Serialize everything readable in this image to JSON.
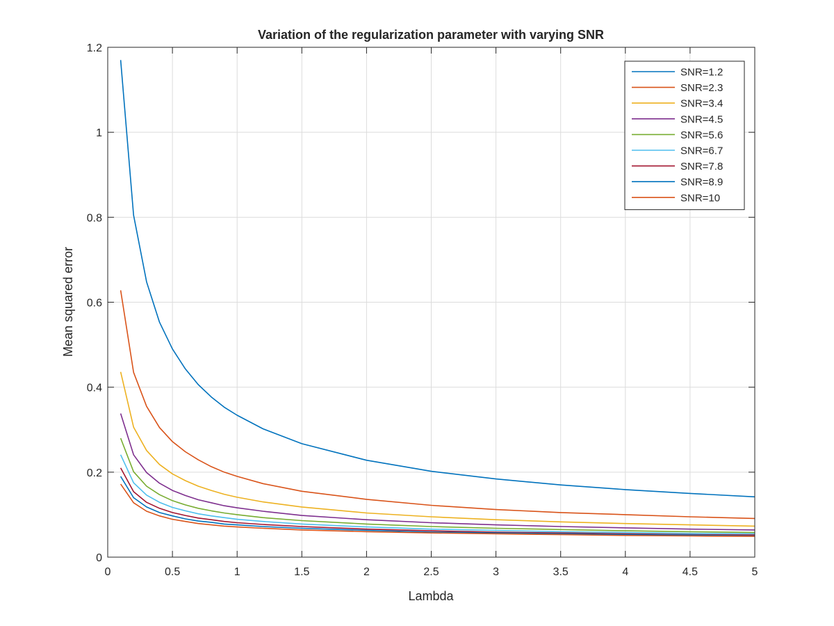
{
  "chart_data": {
    "type": "line",
    "title": "Variation of the regularization parameter with varying SNR",
    "xlabel": "Lambda",
    "ylabel": "Mean squared error",
    "xlim": [
      0,
      5
    ],
    "ylim": [
      0,
      1.2
    ],
    "grid": true,
    "legend_position": "top-right",
    "x_ticks": [
      "0",
      "0.5",
      "1",
      "1.5",
      "2",
      "2.5",
      "3",
      "3.5",
      "4",
      "4.5",
      "5"
    ],
    "y_ticks": [
      "0",
      "0.2",
      "0.4",
      "0.6",
      "0.8",
      "1",
      "1.2"
    ],
    "x": [
      0.1,
      0.2,
      0.3,
      0.4,
      0.5,
      0.6,
      0.7,
      0.8,
      0.9,
      1.0,
      1.2,
      1.5,
      2.0,
      2.5,
      3.0,
      3.5,
      4.0,
      4.5,
      5.0
    ],
    "series": [
      {
        "name": "SNR=1.2",
        "color": "#0072BD",
        "values": [
          1.17,
          0.805,
          0.648,
          0.553,
          0.49,
          0.443,
          0.406,
          0.377,
          0.353,
          0.334,
          0.302,
          0.267,
          0.228,
          0.202,
          0.184,
          0.17,
          0.159,
          0.15,
          0.142
        ]
      },
      {
        "name": "SNR=2.3",
        "color": "#D95319",
        "values": [
          0.628,
          0.435,
          0.355,
          0.305,
          0.272,
          0.248,
          0.229,
          0.213,
          0.2,
          0.19,
          0.173,
          0.155,
          0.136,
          0.122,
          0.112,
          0.105,
          0.1,
          0.095,
          0.091
        ]
      },
      {
        "name": "SNR=3.4",
        "color": "#EDB120",
        "values": [
          0.436,
          0.306,
          0.251,
          0.218,
          0.196,
          0.18,
          0.167,
          0.157,
          0.148,
          0.141,
          0.13,
          0.118,
          0.104,
          0.095,
          0.088,
          0.083,
          0.079,
          0.076,
          0.073
        ]
      },
      {
        "name": "SNR=4.5",
        "color": "#7E2F8E",
        "values": [
          0.338,
          0.241,
          0.199,
          0.174,
          0.157,
          0.145,
          0.135,
          0.128,
          0.121,
          0.116,
          0.108,
          0.098,
          0.088,
          0.081,
          0.076,
          0.072,
          0.069,
          0.066,
          0.064
        ]
      },
      {
        "name": "SNR=5.6",
        "color": "#77AC30",
        "values": [
          0.28,
          0.201,
          0.167,
          0.147,
          0.133,
          0.123,
          0.115,
          0.109,
          0.104,
          0.1,
          0.093,
          0.086,
          0.078,
          0.072,
          0.068,
          0.065,
          0.062,
          0.06,
          0.058
        ]
      },
      {
        "name": "SNR=6.7",
        "color": "#4DBEEE",
        "values": [
          0.241,
          0.175,
          0.146,
          0.129,
          0.117,
          0.109,
          0.102,
          0.097,
          0.093,
          0.089,
          0.084,
          0.078,
          0.071,
          0.066,
          0.063,
          0.06,
          0.058,
          0.056,
          0.055
        ]
      },
      {
        "name": "SNR=7.8",
        "color": "#A2142F",
        "values": [
          0.21,
          0.154,
          0.129,
          0.115,
          0.105,
          0.098,
          0.092,
          0.088,
          0.084,
          0.081,
          0.077,
          0.072,
          0.066,
          0.062,
          0.059,
          0.057,
          0.055,
          0.053,
          0.052
        ]
      },
      {
        "name": "SNR=8.9",
        "color": "#0072BD",
        "values": [
          0.19,
          0.14,
          0.118,
          0.105,
          0.097,
          0.09,
          0.085,
          0.082,
          0.078,
          0.076,
          0.072,
          0.068,
          0.063,
          0.059,
          0.057,
          0.055,
          0.053,
          0.052,
          0.05
        ]
      },
      {
        "name": "SNR=10",
        "color": "#D95319",
        "values": [
          0.172,
          0.128,
          0.108,
          0.097,
          0.089,
          0.084,
          0.079,
          0.076,
          0.073,
          0.071,
          0.068,
          0.064,
          0.06,
          0.057,
          0.055,
          0.053,
          0.051,
          0.05,
          0.049
        ]
      }
    ]
  }
}
